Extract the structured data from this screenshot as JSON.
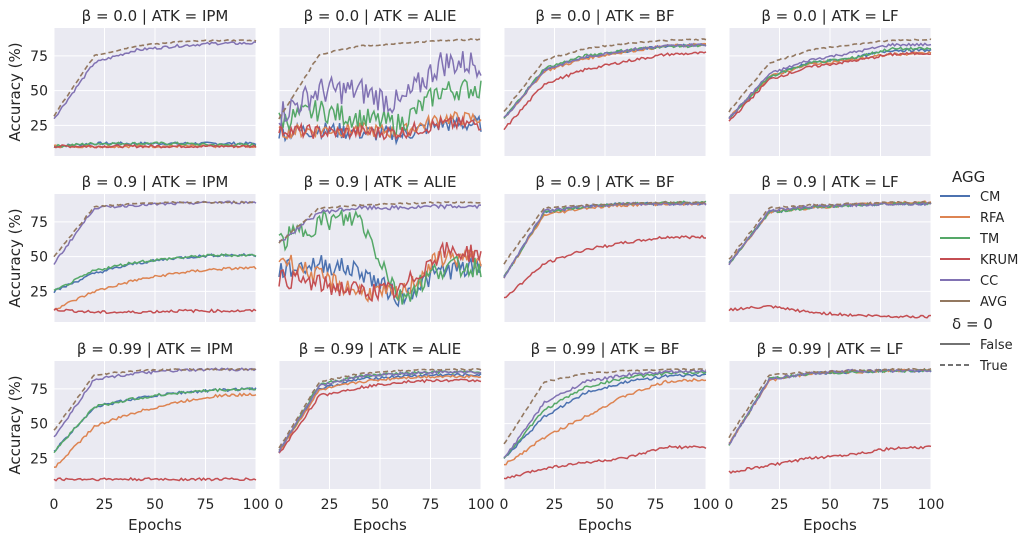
{
  "chart_data": {
    "type": "line",
    "x": "epoch 0..100",
    "xlabel": "Epochs",
    "ylabel": "Accuracy (%)",
    "xticks": [
      "0",
      "25",
      "50",
      "75",
      "100"
    ],
    "yticks": [
      "25",
      "50",
      "75"
    ],
    "ylim": [
      3,
      95
    ],
    "xlim": [
      0,
      100
    ],
    "legend": {
      "title": "AGG",
      "items": [
        "CM",
        "RFA",
        "TM",
        "KRUM",
        "CC",
        "AVG"
      ],
      "colors": {
        "CM": "#4c72b0",
        "RFA": "#dd8452",
        "TM": "#55a868",
        "KRUM": "#c44e52",
        "CC": "#8172b3",
        "AVG": "#937860"
      },
      "style_title": "δ = 0",
      "style_items": [
        "False",
        "True"
      ]
    },
    "panels": [
      {
        "title": "β = 0.0 | ATK = IPM",
        "series": {
          "CM": [
            10,
            12,
            12,
            12,
            12,
            12
          ],
          "RFA": [
            10,
            10,
            10,
            10,
            10,
            10
          ],
          "TM": [
            10,
            12,
            12,
            12,
            11,
            11
          ],
          "KRUM": [
            10,
            10,
            10,
            10,
            10,
            10
          ],
          "CC": [
            30,
            70,
            79,
            82,
            84,
            84
          ]
        },
        "avg": [
          32,
          75,
          82,
          85,
          86,
          86
        ]
      },
      {
        "title": "β = 0.0 | ATK = ALIE",
        "series": {
          "CM": [
            20,
            22,
            20,
            18,
            26,
            26
          ],
          "RFA": [
            20,
            22,
            22,
            20,
            30,
            30
          ],
          "TM": [
            28,
            36,
            30,
            26,
            50,
            52
          ],
          "KRUM": [
            22,
            20,
            20,
            20,
            26,
            26
          ],
          "CC": [
            33,
            50,
            50,
            40,
            70,
            70
          ]
        },
        "avg": [
          30,
          76,
          82,
          84,
          86,
          87
        ]
      },
      {
        "title": "β = 0.0 | ATK = BF",
        "series": {
          "CM": [
            30,
            65,
            74,
            78,
            82,
            83
          ],
          "RFA": [
            30,
            64,
            73,
            78,
            82,
            83
          ],
          "TM": [
            30,
            66,
            75,
            79,
            82,
            82
          ],
          "KRUM": [
            22,
            55,
            65,
            71,
            76,
            77
          ],
          "CC": [
            30,
            65,
            74,
            79,
            82,
            83
          ]
        },
        "avg": [
          35,
          72,
          80,
          84,
          86,
          87
        ]
      },
      {
        "title": "β = 0.0 | ATK = LF",
        "series": {
          "CM": [
            30,
            60,
            70,
            73,
            79,
            79
          ],
          "RFA": [
            30,
            60,
            69,
            72,
            76,
            77
          ],
          "TM": [
            30,
            60,
            70,
            73,
            80,
            80
          ],
          "KRUM": [
            28,
            58,
            67,
            71,
            76,
            77
          ],
          "CC": [
            30,
            62,
            72,
            77,
            83,
            83
          ]
        },
        "avg": [
          35,
          70,
          79,
          83,
          86,
          87
        ]
      },
      {
        "title": "β = 0.9 | ATK = IPM",
        "series": {
          "CM": [
            25,
            38,
            45,
            49,
            51,
            51
          ],
          "RFA": [
            12,
            25,
            33,
            38,
            41,
            42
          ],
          "TM": [
            25,
            40,
            46,
            49,
            51,
            51
          ],
          "KRUM": [
            12,
            10,
            10,
            11,
            11,
            11
          ],
          "CC": [
            45,
            85,
            87,
            88,
            89,
            89
          ]
        },
        "avg": [
          50,
          86,
          88,
          89,
          89,
          89
        ]
      },
      {
        "title": "β = 0.9 | ATK = ALIE",
        "series": {
          "CM": [
            40,
            45,
            40,
            20,
            40,
            42
          ],
          "RFA": [
            50,
            35,
            25,
            22,
            50,
            48
          ],
          "TM": [
            60,
            75,
            78,
            20,
            42,
            43
          ],
          "KRUM": [
            35,
            30,
            25,
            25,
            54,
            52
          ],
          "CC": [
            60,
            82,
            85,
            85,
            86,
            86
          ]
        },
        "avg": [
          60,
          85,
          87,
          88,
          89,
          89
        ]
      },
      {
        "title": "β = 0.9 | ATK = BF",
        "series": {
          "CM": [
            35,
            82,
            86,
            88,
            88,
            88
          ],
          "RFA": [
            35,
            80,
            85,
            87,
            88,
            88
          ],
          "TM": [
            35,
            82,
            86,
            88,
            89,
            89
          ],
          "KRUM": [
            20,
            45,
            55,
            60,
            64,
            64
          ],
          "CC": [
            35,
            83,
            86,
            88,
            88,
            88
          ]
        },
        "avg": [
          45,
          85,
          87,
          88,
          89,
          89
        ]
      },
      {
        "title": "β = 0.9 | ATK = LF",
        "series": {
          "CM": [
            45,
            82,
            85,
            87,
            88,
            88
          ],
          "RFA": [
            45,
            82,
            85,
            87,
            89,
            89
          ],
          "TM": [
            45,
            82,
            85,
            87,
            88,
            88
          ],
          "KRUM": [
            12,
            14,
            10,
            8,
            7,
            7
          ],
          "CC": [
            45,
            83,
            86,
            87,
            88,
            88
          ]
        },
        "avg": [
          48,
          85,
          87,
          88,
          89,
          89
        ]
      },
      {
        "title": "β = 0.99 | ATK = IPM",
        "series": {
          "CM": [
            30,
            62,
            68,
            72,
            74,
            75
          ],
          "RFA": [
            18,
            48,
            58,
            65,
            70,
            71
          ],
          "TM": [
            30,
            62,
            68,
            72,
            74,
            75
          ],
          "KRUM": [
            10,
            10,
            10,
            10,
            10,
            10
          ],
          "CC": [
            40,
            82,
            86,
            88,
            89,
            89
          ]
        },
        "avg": [
          45,
          85,
          88,
          89,
          89,
          89
        ]
      },
      {
        "title": "β = 0.99 | ATK = ALIE",
        "series": {
          "CM": [
            30,
            75,
            82,
            84,
            85,
            85
          ],
          "RFA": [
            30,
            74,
            80,
            83,
            84,
            84
          ],
          "TM": [
            30,
            78,
            84,
            86,
            87,
            87
          ],
          "KRUM": [
            28,
            70,
            76,
            80,
            81,
            81
          ],
          "CC": [
            30,
            77,
            84,
            86,
            87,
            87
          ]
        },
        "avg": [
          32,
          80,
          86,
          88,
          89,
          89
        ]
      },
      {
        "title": "β = 0.99 | ATK = BF",
        "series": {
          "CM": [
            25,
            55,
            72,
            80,
            84,
            85
          ],
          "RFA": [
            20,
            40,
            55,
            70,
            80,
            82
          ],
          "TM": [
            25,
            60,
            76,
            83,
            86,
            87
          ],
          "KRUM": [
            10,
            18,
            22,
            25,
            33,
            33
          ],
          "CC": [
            25,
            65,
            80,
            85,
            87,
            88
          ]
        },
        "avg": [
          35,
          80,
          86,
          88,
          89,
          89
        ]
      },
      {
        "title": "β = 0.99 | ATK = LF",
        "series": {
          "CM": [
            35,
            82,
            86,
            87,
            88,
            88
          ],
          "RFA": [
            35,
            81,
            86,
            87,
            88,
            88
          ],
          "TM": [
            35,
            82,
            86,
            87,
            88,
            88
          ],
          "KRUM": [
            15,
            20,
            25,
            28,
            32,
            33
          ],
          "CC": [
            35,
            82,
            86,
            88,
            88,
            88
          ]
        },
        "avg": [
          40,
          85,
          87,
          88,
          89,
          89
        ]
      }
    ]
  }
}
